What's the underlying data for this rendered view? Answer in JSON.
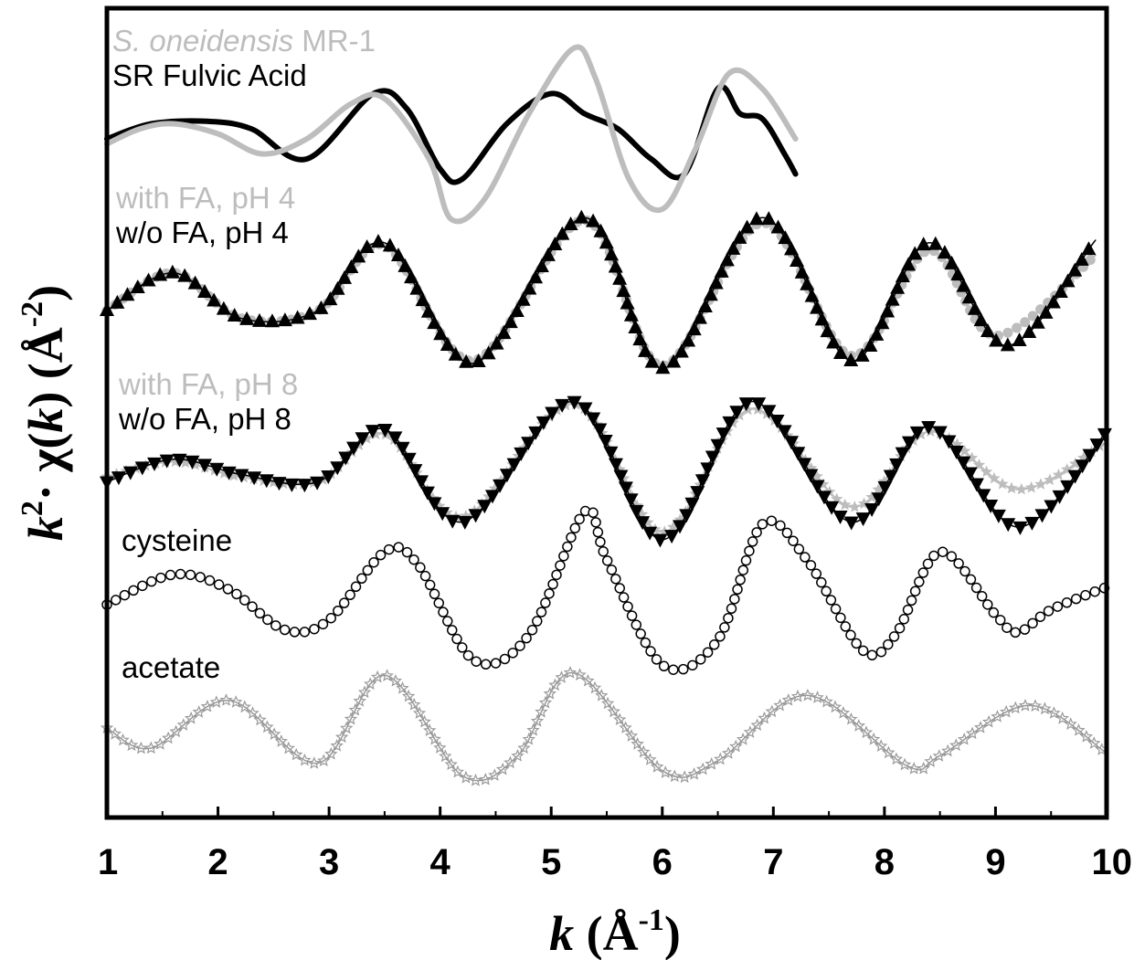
{
  "chart_data": {
    "type": "line",
    "title": "",
    "xlabel": {
      "var": "k",
      "unit_open": " (Å",
      "unit_sup": "-1",
      "unit_close": ")"
    },
    "ylabel": {
      "var1": "k",
      "sup1": "2",
      "mid": "· χ(",
      "var2": "k",
      "close": ") (Å",
      "sup2": "-2",
      "end": ")"
    },
    "xlim": [
      1,
      10
    ],
    "x_ticks": [
      "1",
      "2",
      "3",
      "4",
      "5",
      "6",
      "7",
      "8",
      "9",
      "10"
    ],
    "y_ticks_shown": false,
    "grid": false,
    "legend": "inline text labels",
    "colors": {
      "black": "#000000",
      "light_gray": "#bdbdbd",
      "mid_gray": "#8c8c8c",
      "star_gray": "#999999"
    },
    "label_sets": [
      {
        "id": "sr",
        "lines": [
          {
            "name": "S. oneidensis MR-1",
            "italic_part": "S. oneidensis",
            "rest": " MR-1",
            "color": "#bdbdbd"
          },
          {
            "name": "SR Fulvic Acid",
            "color": "#000000"
          }
        ]
      },
      {
        "id": "ph4",
        "lines": [
          {
            "name": "with FA, pH 4",
            "color": "#bdbdbd"
          },
          {
            "name": "w/o FA, pH 4",
            "color": "#000000"
          }
        ]
      },
      {
        "id": "ph8",
        "lines": [
          {
            "name": "with FA, pH 8",
            "color": "#bdbdbd"
          },
          {
            "name": "w/o FA, pH 8",
            "color": "#000000"
          }
        ]
      },
      {
        "id": "cys",
        "lines": [
          {
            "name": "cysteine",
            "color": "#000000"
          }
        ]
      },
      {
        "id": "ace",
        "lines": [
          {
            "name": "acetate",
            "color": "#000000"
          }
        ]
      }
    ],
    "series": [
      {
        "id": "sr-fa",
        "label_set": "sr",
        "color": "#000000",
        "marker": "none",
        "line_width": 6,
        "offset_index": 0,
        "x": [
          1.0,
          1.4,
          1.9,
          2.3,
          2.8,
          3.4,
          3.7,
          4.0,
          4.2,
          4.6,
          5.0,
          5.3,
          5.6,
          5.9,
          6.2,
          6.5,
          6.7,
          6.9,
          7.1,
          7.2
        ],
        "y": [
          0.0,
          0.3,
          0.35,
          0.2,
          -0.4,
          0.9,
          0.6,
          -0.6,
          -0.8,
          0.3,
          0.9,
          0.5,
          0.2,
          -0.4,
          -0.7,
          1.0,
          0.5,
          0.4,
          -0.3,
          -0.7
        ]
      },
      {
        "id": "sr-shewanella",
        "label_set": "sr",
        "color": "#bdbdbd",
        "marker": "none",
        "line_width": 6,
        "offset_index": 0,
        "x": [
          1.0,
          1.3,
          1.6,
          2.0,
          2.4,
          2.8,
          3.2,
          3.5,
          3.9,
          4.1,
          4.4,
          4.8,
          5.2,
          5.4,
          5.7,
          6.0,
          6.3,
          6.6,
          6.9,
          7.2
        ],
        "y": [
          -0.1,
          0.2,
          0.3,
          0.1,
          -0.3,
          0.0,
          0.7,
          0.8,
          -0.4,
          -1.6,
          -1.2,
          0.5,
          1.8,
          1.2,
          -0.8,
          -1.4,
          -0.2,
          1.3,
          1.0,
          0.0
        ]
      },
      {
        "id": "ph4-with-fa",
        "label_set": "ph4",
        "color": "#bdbdbd",
        "marker": "circle",
        "line_width": 2,
        "offset_index": 1,
        "x": [
          1.0,
          1.6,
          2.2,
          2.9,
          3.5,
          4.3,
          5.3,
          6.0,
          6.9,
          7.7,
          8.4,
          9.0,
          9.9
        ],
        "y": [
          0.0,
          0.75,
          -0.15,
          0.0,
          1.3,
          -1.0,
          1.8,
          -1.1,
          1.75,
          -0.9,
          1.2,
          -0.5,
          1.1
        ]
      },
      {
        "id": "ph4-without-fa",
        "label_set": "ph4",
        "color": "#000000",
        "marker": "triangle-up",
        "line_width": 1.5,
        "offset_index": 1,
        "x": [
          1.0,
          1.6,
          2.2,
          2.9,
          3.5,
          4.3,
          5.3,
          6.0,
          6.9,
          7.7,
          8.4,
          9.1,
          9.9
        ],
        "y": [
          0.0,
          0.75,
          -0.15,
          0.0,
          1.35,
          -1.05,
          1.85,
          -1.15,
          1.85,
          -1.0,
          1.35,
          -0.7,
          1.4
        ]
      },
      {
        "id": "ph8-with-fa",
        "label_set": "ph8",
        "color": "#bdbdbd",
        "marker": "star",
        "line_width": 2,
        "offset_index": 2,
        "x": [
          1.0,
          1.6,
          2.2,
          2.9,
          3.5,
          4.2,
          5.2,
          6.0,
          6.8,
          7.7,
          8.4,
          9.2,
          10.0
        ],
        "y": [
          0.0,
          0.3,
          0.0,
          -0.1,
          0.85,
          -0.8,
          1.45,
          -1.1,
          1.35,
          -0.6,
          0.9,
          -0.25,
          0.7
        ]
      },
      {
        "id": "ph8-without-fa",
        "label_set": "ph8",
        "color": "#000000",
        "marker": "triangle-down",
        "line_width": 1.5,
        "offset_index": 2,
        "x": [
          1.0,
          1.6,
          2.2,
          2.9,
          3.5,
          4.2,
          5.2,
          6.0,
          6.8,
          7.7,
          8.4,
          9.2,
          10.0
        ],
        "y": [
          -0.1,
          0.35,
          0.05,
          -0.1,
          0.95,
          -0.9,
          1.5,
          -1.25,
          1.5,
          -0.9,
          1.0,
          -1.0,
          0.9
        ]
      },
      {
        "id": "cysteine",
        "label_set": "cys",
        "color": "#000000",
        "marker": "open-circle",
        "line_width": 1.5,
        "offset_index": 3,
        "x": [
          1.0,
          1.6,
          2.1,
          2.6,
          3.0,
          3.5,
          3.8,
          4.3,
          4.8,
          5.3,
          5.5,
          6.0,
          6.5,
          6.9,
          7.3,
          7.8,
          8.1,
          8.5,
          9.0,
          9.2,
          9.5,
          10.0
        ],
        "y": [
          0.0,
          0.6,
          0.3,
          -0.5,
          -0.3,
          1.05,
          0.8,
          -1.1,
          -0.6,
          1.85,
          0.9,
          -1.2,
          -0.7,
          1.6,
          0.9,
          -0.9,
          -0.6,
          1.05,
          -0.2,
          -0.55,
          -0.1,
          0.35
        ]
      },
      {
        "id": "acetate",
        "label_set": "ace",
        "color": "#999999",
        "marker": "open-star",
        "line_width": 1.5,
        "offset_index": 4,
        "x": [
          1.0,
          1.4,
          2.1,
          2.9,
          3.5,
          4.2,
          4.7,
          5.2,
          6.0,
          6.5,
          7.3,
          8.2,
          8.5,
          9.3,
          10.0
        ],
        "y": [
          0.2,
          -0.2,
          0.75,
          -0.5,
          1.25,
          -0.75,
          -0.35,
          1.3,
          -0.65,
          -0.45,
          0.85,
          -0.55,
          -0.35,
          0.65,
          -0.3
        ]
      }
    ]
  }
}
